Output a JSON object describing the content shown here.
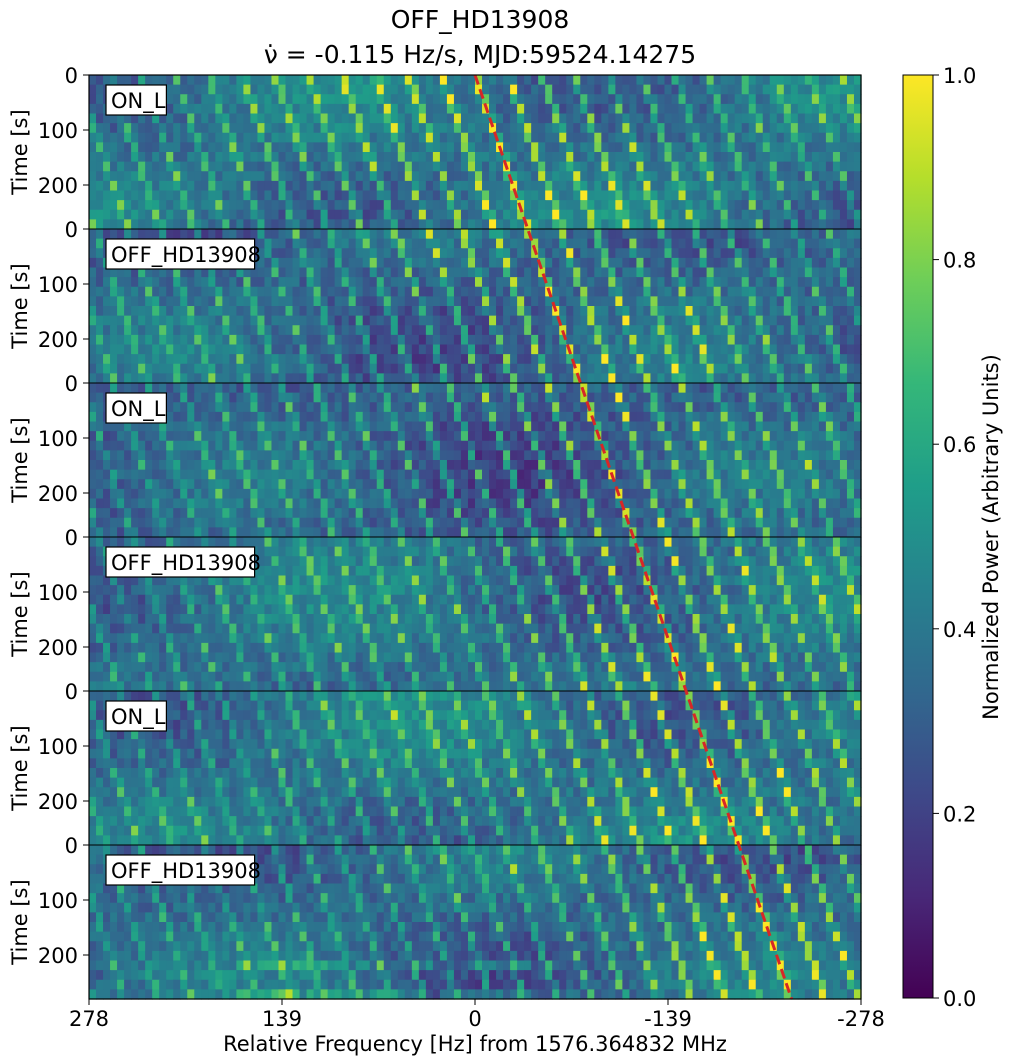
{
  "chart_data": {
    "type": "heatmap",
    "title": "OFF_HD13908",
    "subtitle": "ν̇ = -0.115 Hz/s, MJD:59524.14275",
    "xlabel": "Relative Frequency [Hz] from 1576.364832 MHz",
    "ylabel": "Time [s]",
    "x_ticks": [
      "278",
      "139",
      "0",
      "-139",
      "-278"
    ],
    "x_tick_values": [
      278,
      139,
      0,
      -139,
      -278
    ],
    "xlim": [
      278,
      -278
    ],
    "panel_ylim": [
      0,
      280
    ],
    "y_ticks": [
      "0",
      "100",
      "200"
    ],
    "y_tick_values": [
      0,
      100,
      200
    ],
    "panels": [
      {
        "label": "ON_L"
      },
      {
        "label": "OFF_HD13908"
      },
      {
        "label": "ON_L"
      },
      {
        "label": "OFF_HD13908"
      },
      {
        "label": "ON_L"
      },
      {
        "label": "OFF_HD13908"
      }
    ],
    "colorbar": {
      "label": "Normalized Power (Arbitrary Units)",
      "range": [
        0.0,
        1.0
      ],
      "ticks": [
        "0.0",
        "0.2",
        "0.4",
        "0.6",
        "0.8",
        "1.0"
      ],
      "tick_values": [
        0.0,
        0.2,
        0.4,
        0.6,
        0.8,
        1.0
      ],
      "colormap": "viridis"
    },
    "drift_line": {
      "color": "#d62728",
      "style": "dashed",
      "drift_rate_hz_per_s": -0.115,
      "start_frequency_hz": 0,
      "end_frequency_hz": -228
    },
    "colormap_stops": [
      "#440154",
      "#482878",
      "#3e4989",
      "#31688e",
      "#26828e",
      "#1f9e89",
      "#35b779",
      "#6ece58",
      "#b5de2b",
      "#fde725"
    ]
  }
}
